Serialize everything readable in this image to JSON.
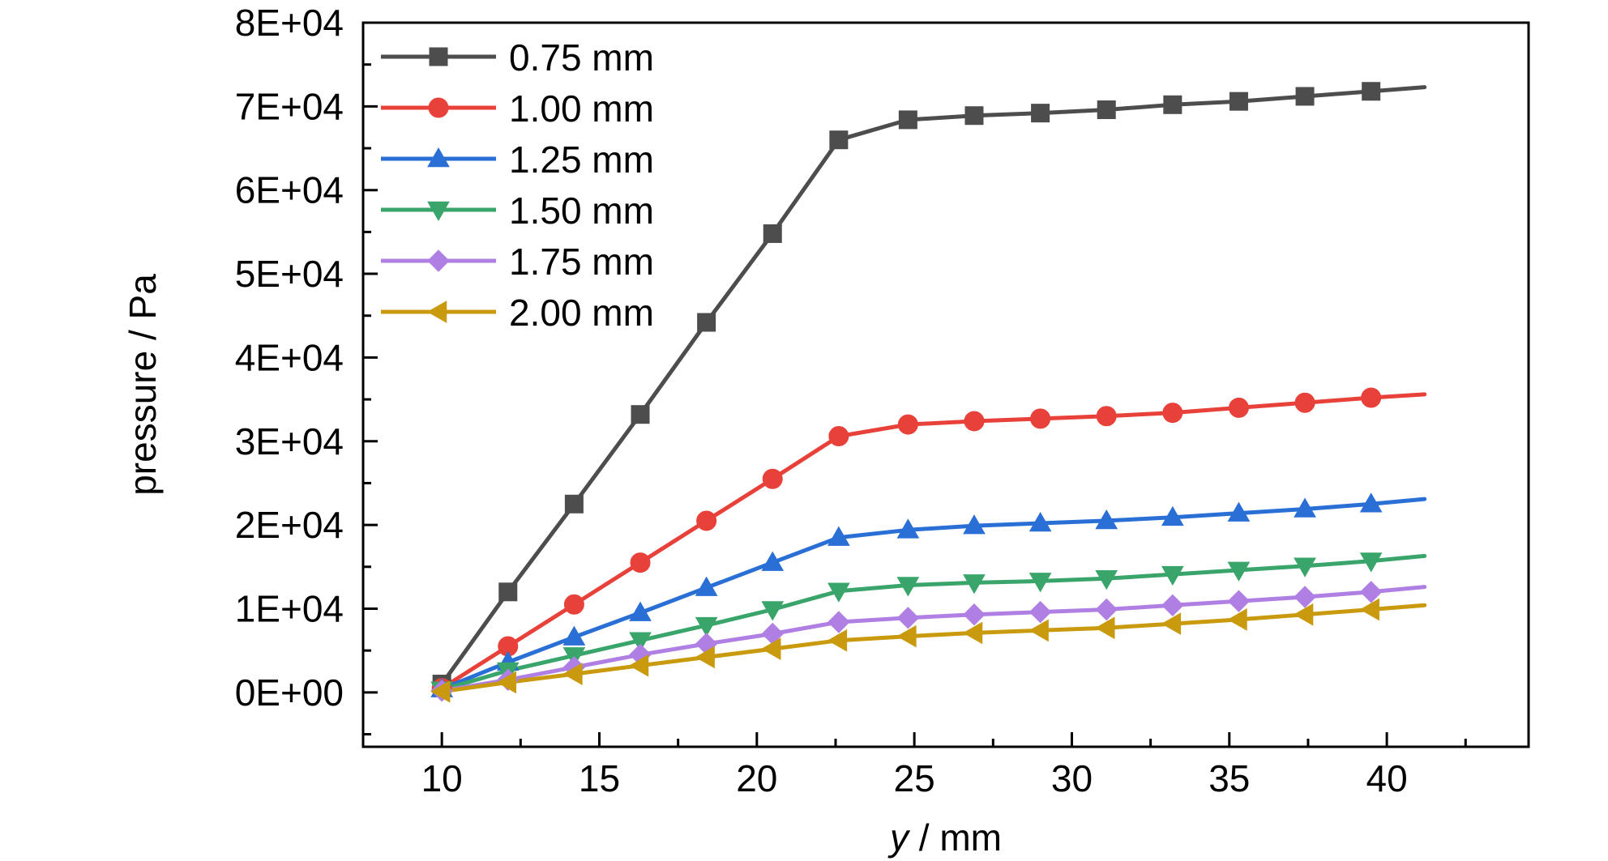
{
  "chart_data": {
    "type": "line",
    "xlabel_var": "y",
    "xlabel_unit": " / mm",
    "ylabel": "pressure / Pa",
    "xlim": [
      7.5,
      44.5
    ],
    "ylim": [
      -6500,
      80000
    ],
    "xticks": [
      10,
      15,
      20,
      25,
      30,
      35,
      40
    ],
    "yticks": [
      0,
      10000,
      20000,
      30000,
      40000,
      50000,
      60000,
      70000,
      80000
    ],
    "ytick_labels": [
      "0E+00",
      "1E+04",
      "2E+04",
      "3E+04",
      "4E+04",
      "5E+04",
      "6E+04",
      "7E+04",
      "8E+04"
    ],
    "grid": false,
    "legend_position": "top-left",
    "x": [
      10,
      12.1,
      14.2,
      16.3,
      18.4,
      20.5,
      22.6,
      24.8,
      26.9,
      29.0,
      31.1,
      33.2,
      35.3,
      37.4,
      39.5,
      41.2
    ],
    "series": [
      {
        "name": "0.75 mm",
        "color": "#4d4d4d",
        "marker": "square",
        "values": [
          1000,
          12000,
          22500,
          33200,
          44200,
          54800,
          66000,
          68400,
          68900,
          69200,
          69600,
          70200,
          70600,
          71200,
          71800,
          72300
        ]
      },
      {
        "name": "1.00 mm",
        "color": "#e8413a",
        "marker": "circle",
        "values": [
          500,
          5500,
          10500,
          15500,
          20500,
          25500,
          30600,
          32000,
          32400,
          32700,
          33000,
          33400,
          34000,
          34600,
          35200,
          35600
        ]
      },
      {
        "name": "1.25 mm",
        "color": "#2a6fd6",
        "marker": "triangle-up",
        "values": [
          400,
          3600,
          6600,
          9500,
          12500,
          15500,
          18500,
          19400,
          19900,
          20200,
          20500,
          20900,
          21400,
          21900,
          22500,
          23100
        ]
      },
      {
        "name": "1.50 mm",
        "color": "#3aa56b",
        "marker": "triangle-down",
        "values": [
          300,
          2600,
          4400,
          6200,
          8000,
          9900,
          12100,
          12800,
          13100,
          13300,
          13600,
          14100,
          14600,
          15100,
          15700,
          16300
        ]
      },
      {
        "name": "1.75 mm",
        "color": "#b07fe3",
        "marker": "diamond",
        "values": [
          200,
          1500,
          3000,
          4500,
          5800,
          7000,
          8400,
          8900,
          9300,
          9600,
          9900,
          10400,
          10900,
          11400,
          12000,
          12600
        ]
      },
      {
        "name": "2.00 mm",
        "color": "#c99a0e",
        "marker": "triangle-left",
        "values": [
          100,
          1200,
          2200,
          3200,
          4200,
          5200,
          6200,
          6700,
          7100,
          7400,
          7700,
          8200,
          8700,
          9300,
          9900,
          10400
        ]
      }
    ]
  }
}
